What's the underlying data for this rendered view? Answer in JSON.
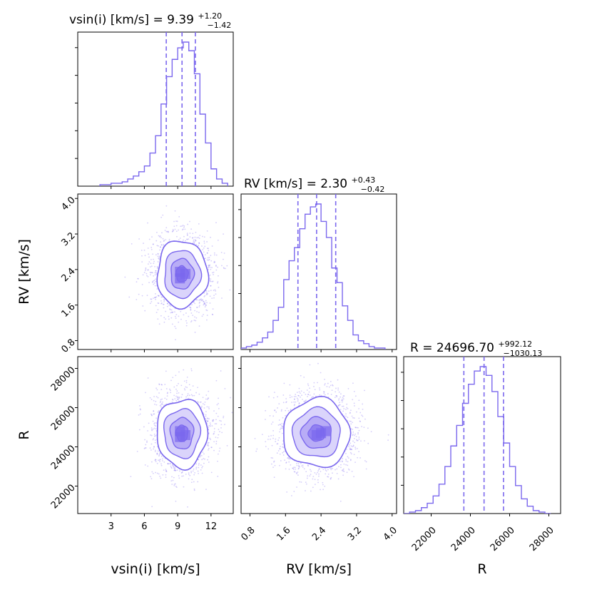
{
  "colors": {
    "accent": "#7b68ee",
    "fill_light": "#d4cdfa",
    "fill_mid": "#b1a4f5",
    "fill_dark": "#8a78f0",
    "axis": "#000000"
  },
  "chart_data": {
    "type": "corner",
    "parameters": [
      {
        "name": "vsin(i)",
        "label": "vsin(i) [km/s]",
        "range": [
          0,
          14
        ],
        "ticks": [
          3,
          6,
          9,
          12
        ],
        "median": 9.39,
        "upper_err": "+1.20",
        "lower_err": "−1.42",
        "quantiles": [
          7.97,
          9.39,
          10.59
        ],
        "title_text": "vsin(i) [km/s] = 9.39",
        "hist": {
          "edges": [
            2,
            2.5,
            3,
            3.5,
            4,
            4.5,
            5,
            5.5,
            6,
            6.5,
            7,
            7.5,
            8,
            8.5,
            9,
            9.5,
            10,
            10.5,
            11,
            11.5,
            12,
            12.5,
            13,
            13.5
          ],
          "counts": [
            0.01,
            0.01,
            0.02,
            0.02,
            0.03,
            0.05,
            0.07,
            0.1,
            0.14,
            0.23,
            0.35,
            0.57,
            0.76,
            0.88,
            0.96,
            1.0,
            0.94,
            0.78,
            0.5,
            0.3,
            0.12,
            0.05,
            0.02
          ]
        }
      },
      {
        "name": "RV",
        "label": "RV [km/s]",
        "range": [
          0.6,
          4.1
        ],
        "ticks": [
          0.8,
          1.6,
          2.4,
          3.2,
          4.0
        ],
        "tick_labels": [
          "0.8",
          "1.6",
          "2.4",
          "3.2",
          "4.0"
        ],
        "median": 2.3,
        "upper_err": "+0.43",
        "lower_err": "−0.42",
        "quantiles": [
          1.88,
          2.3,
          2.73
        ],
        "title_text": "RV [km/s] = 2.30",
        "hist": {
          "edges": [
            0.6,
            0.72,
            0.84,
            0.96,
            1.08,
            1.2,
            1.32,
            1.44,
            1.56,
            1.68,
            1.8,
            1.92,
            2.04,
            2.16,
            2.28,
            2.4,
            2.52,
            2.64,
            2.76,
            2.88,
            3.0,
            3.12,
            3.24,
            3.36,
            3.48,
            3.6,
            3.72,
            3.84
          ],
          "counts": [
            0.01,
            0.02,
            0.03,
            0.05,
            0.08,
            0.12,
            0.2,
            0.29,
            0.48,
            0.61,
            0.7,
            0.83,
            0.93,
            0.98,
            1.0,
            0.88,
            0.77,
            0.56,
            0.46,
            0.3,
            0.2,
            0.1,
            0.06,
            0.04,
            0.02,
            0.01,
            0.01
          ]
        }
      },
      {
        "name": "R",
        "label": "R",
        "range": [
          20600,
          28600
        ],
        "ticks": [
          22000,
          24000,
          26000,
          28000
        ],
        "tick_labels": [
          "22000",
          "24000",
          "26000",
          "28000"
        ],
        "median": 24696.7,
        "upper_err": "+992.12",
        "lower_err": "−1030.13",
        "quantiles": [
          23666.57,
          24696.7,
          25688.82
        ],
        "title_text": "R = 24696.70",
        "hist": {
          "edges": [
            20600,
            20900,
            21200,
            21500,
            21800,
            22100,
            22400,
            22700,
            23000,
            23300,
            23600,
            23900,
            24200,
            24500,
            24800,
            25100,
            25400,
            25700,
            26000,
            26300,
            26600,
            26900,
            27200,
            27500,
            27800,
            28100
          ],
          "counts": [
            0.0,
            0.01,
            0.02,
            0.04,
            0.07,
            0.12,
            0.2,
            0.32,
            0.46,
            0.6,
            0.75,
            0.88,
            0.97,
            1.0,
            0.94,
            0.83,
            0.66,
            0.48,
            0.32,
            0.19,
            0.1,
            0.05,
            0.02,
            0.01,
            0.0
          ]
        }
      }
    ],
    "contour_panels": [
      {
        "x": "vsin(i)",
        "y": "RV",
        "center": [
          9.39,
          2.3
        ],
        "sigma": [
          1.3,
          0.43
        ],
        "peak_bins": [
          [
            9.2,
            2.35
          ],
          [
            9.7,
            2.3
          ],
          [
            9.2,
            2.2
          ]
        ]
      },
      {
        "x": "vsin(i)",
        "y": "R",
        "center": [
          9.39,
          24697
        ],
        "sigma": [
          1.3,
          1000
        ],
        "peak_bins": [
          [
            9.2,
            24800
          ],
          [
            9.7,
            24600
          ],
          [
            9.2,
            24500
          ]
        ]
      },
      {
        "x": "RV",
        "y": "R",
        "center": [
          2.3,
          24697
        ],
        "sigma": [
          0.43,
          1000
        ],
        "peak_bins": [
          [
            2.4,
            24700
          ],
          [
            2.3,
            24600
          ],
          [
            2.5,
            24800
          ]
        ]
      }
    ]
  }
}
